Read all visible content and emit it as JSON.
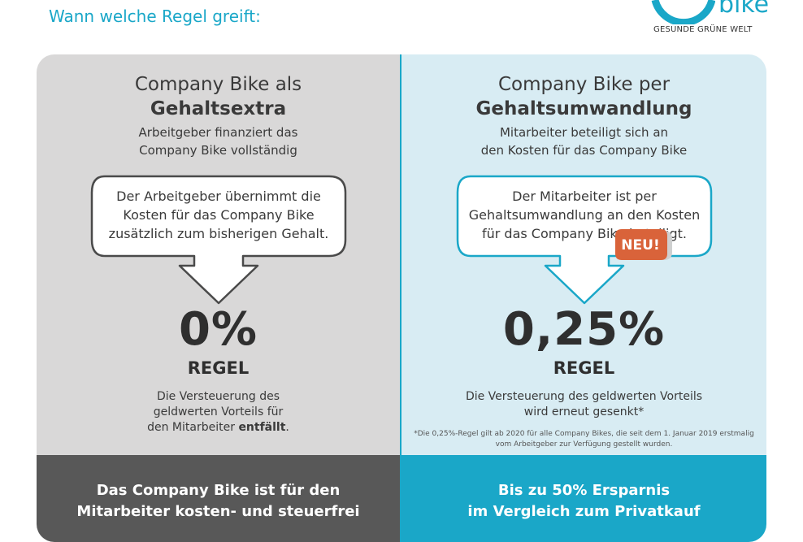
{
  "header": {
    "subtitle": "Wann welche Regel greift:"
  },
  "logo": {
    "word": "bike",
    "tagline": "GESUNDE GRÜNE WELT"
  },
  "left": {
    "title_line1": "Company Bike als",
    "title_line2": "Gehaltsextra",
    "sub_line1": "Arbeitgeber finanziert das",
    "sub_line2": "Company Bike vollständig",
    "bubble_line1": "Der Arbeitgeber übernimmt die",
    "bubble_line2": "Kosten für das Company Bike",
    "bubble_line3": "zusätzlich zum bisherigen Gehalt.",
    "rate": "0%",
    "regel": "REGEL",
    "desc_line1": "Die Versteuerung des",
    "desc_line2": "geldwerten Vorteils für",
    "desc_line3_pre": "den Mitarbeiter ",
    "desc_line3_bold": "entfällt",
    "desc_line3_post": ".",
    "footer_line1": "Das Company Bike ist für den",
    "footer_line2": "Mitarbeiter kosten- und steuerfrei"
  },
  "right": {
    "title_line1": "Company Bike per",
    "title_line2": "Gehaltsumwandlung",
    "sub_line1": "Mitarbeiter beteiligt sich an",
    "sub_line2": "den Kosten für das Company Bike",
    "bubble_line1": "Der Mitarbeiter ist per",
    "bubble_line2": "Gehaltsumwandlung an den Kosten",
    "bubble_line3": "für das Company Bike beteiligt.",
    "badge": "NEU!",
    "rate": "0,25%",
    "regel": "REGEL",
    "desc_line1": "Die Versteuerung des geldwerten Vorteils",
    "desc_line2": "wird erneut gesenkt*",
    "footnote_line1": "*Die 0,25%-Regel gilt ab 2020 für alle Company Bikes, die seit dem 1. Januar 2019 erstmalig",
    "footnote_line2": "vom Arbeitgeber zur Verfügung gestellt wurden.",
    "footer_line1": "Bis zu 50% Ersparnis",
    "footer_line2": "im Vergleich zum Privatkauf"
  },
  "colors": {
    "accent": "#1aa7c8",
    "left_panel": "#d9d8d8",
    "right_panel": "#d8ecf3",
    "left_footer": "#585858",
    "badge": "#d9633a"
  }
}
